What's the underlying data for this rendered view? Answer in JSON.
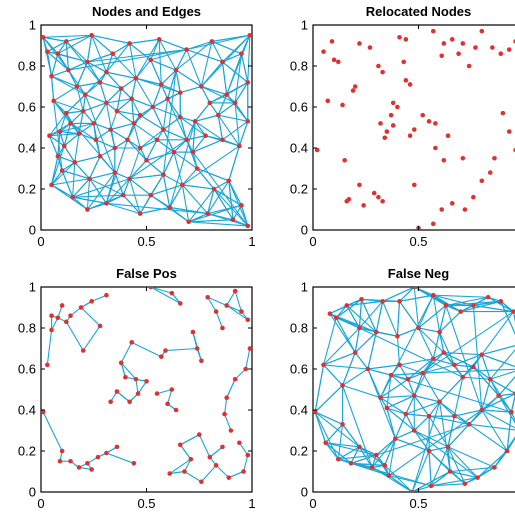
{
  "figure": {
    "panel_count": 4
  },
  "chart_data": [
    {
      "type": "scatter",
      "title": "Nodes and Edges",
      "xlabel": "",
      "ylabel": "",
      "xlim": [
        0,
        1
      ],
      "ylim": [
        0,
        1
      ],
      "xticks": [
        "0",
        "0.5",
        "1"
      ],
      "yticks": [
        "0",
        "0.2",
        "0.4",
        "0.6",
        "0.8",
        "1"
      ],
      "grid": false,
      "node_color": "#e03030",
      "edge_color": "#1aa7d8",
      "edge_density": "dense",
      "points": [
        [
          0.03,
          0.87
        ],
        [
          0.08,
          0.86
        ],
        [
          0.12,
          0.92
        ],
        [
          0.05,
          0.75
        ],
        [
          0.13,
          0.78
        ],
        [
          0.22,
          0.82
        ],
        [
          0.24,
          0.95
        ],
        [
          0.31,
          0.77
        ],
        [
          0.34,
          0.86
        ],
        [
          0.42,
          0.91
        ],
        [
          0.52,
          0.83
        ],
        [
          0.56,
          0.93
        ],
        [
          0.64,
          0.78
        ],
        [
          0.69,
          0.88
        ],
        [
          0.81,
          0.92
        ],
        [
          0.86,
          0.82
        ],
        [
          0.95,
          0.86
        ],
        [
          0.98,
          0.72
        ],
        [
          0.88,
          0.66
        ],
        [
          0.76,
          0.7
        ],
        [
          0.6,
          0.64
        ],
        [
          0.53,
          0.6
        ],
        [
          0.47,
          0.56
        ],
        [
          0.43,
          0.64
        ],
        [
          0.38,
          0.69
        ],
        [
          0.31,
          0.62
        ],
        [
          0.21,
          0.66
        ],
        [
          0.12,
          0.57
        ],
        [
          0.06,
          0.63
        ],
        [
          0.04,
          0.46
        ],
        [
          0.11,
          0.41
        ],
        [
          0.18,
          0.47
        ],
        [
          0.26,
          0.44
        ],
        [
          0.33,
          0.49
        ],
        [
          0.41,
          0.44
        ],
        [
          0.47,
          0.4
        ],
        [
          0.58,
          0.49
        ],
        [
          0.66,
          0.55
        ],
        [
          0.73,
          0.53
        ],
        [
          0.78,
          0.46
        ],
        [
          0.86,
          0.44
        ],
        [
          0.94,
          0.41
        ],
        [
          0.98,
          0.53
        ],
        [
          0.1,
          0.29
        ],
        [
          0.16,
          0.33
        ],
        [
          0.23,
          0.25
        ],
        [
          0.28,
          0.36
        ],
        [
          0.35,
          0.28
        ],
        [
          0.42,
          0.25
        ],
        [
          0.39,
          0.17
        ],
        [
          0.31,
          0.13
        ],
        [
          0.22,
          0.1
        ],
        [
          0.15,
          0.16
        ],
        [
          0.05,
          0.22
        ],
        [
          0.47,
          0.08
        ],
        [
          0.52,
          0.17
        ],
        [
          0.61,
          0.11
        ],
        [
          0.67,
          0.22
        ],
        [
          0.74,
          0.3
        ],
        [
          0.82,
          0.2
        ],
        [
          0.89,
          0.24
        ],
        [
          0.95,
          0.12
        ],
        [
          0.98,
          0.02
        ],
        [
          0.91,
          0.05
        ],
        [
          0.79,
          0.08
        ],
        [
          0.7,
          0.04
        ],
        [
          0.58,
          0.27
        ],
        [
          0.5,
          0.34
        ],
        [
          0.63,
          0.38
        ],
        [
          0.72,
          0.38
        ],
        [
          0.36,
          0.58
        ],
        [
          0.28,
          0.72
        ],
        [
          0.17,
          0.7
        ],
        [
          0.09,
          0.48
        ],
        [
          0.45,
          0.74
        ],
        [
          0.57,
          0.71
        ],
        [
          0.66,
          0.67
        ],
        [
          0.84,
          0.56
        ],
        [
          0.92,
          0.62
        ],
        [
          0.99,
          0.95
        ],
        [
          0.01,
          0.94
        ],
        [
          0.2,
          0.58
        ],
        [
          0.44,
          0.52
        ],
        [
          0.55,
          0.44
        ],
        [
          0.69,
          0.44
        ],
        [
          0.8,
          0.62
        ],
        [
          0.35,
          0.4
        ],
        [
          0.25,
          0.52
        ],
        [
          0.14,
          0.52
        ],
        [
          0.08,
          0.36
        ]
      ]
    },
    {
      "type": "scatter",
      "title": "Relocated Nodes",
      "xlabel": "",
      "ylabel": "",
      "xlim": [
        0,
        1
      ],
      "ylim": [
        0,
        1
      ],
      "xticks": [
        "0",
        "0.5"
      ],
      "yticks": [
        "0",
        "0.2",
        "0.4",
        "0.6",
        "0.8",
        "1"
      ],
      "grid": false,
      "node_color": "#e03030",
      "points": [
        [
          0.02,
          0.39
        ],
        [
          0.05,
          0.87
        ],
        [
          0.09,
          0.92
        ],
        [
          0.1,
          0.83
        ],
        [
          0.12,
          0.82
        ],
        [
          0.07,
          0.63
        ],
        [
          0.14,
          0.61
        ],
        [
          0.15,
          0.34
        ],
        [
          0.17,
          0.15
        ],
        [
          0.16,
          0.14
        ],
        [
          0.22,
          0.22
        ],
        [
          0.24,
          0.12
        ],
        [
          0.22,
          0.91
        ],
        [
          0.27,
          0.89
        ],
        [
          0.31,
          0.8
        ],
        [
          0.33,
          0.77
        ],
        [
          0.29,
          0.18
        ],
        [
          0.31,
          0.16
        ],
        [
          0.33,
          0.14
        ],
        [
          0.34,
          0.45
        ],
        [
          0.35,
          0.48
        ],
        [
          0.37,
          0.56
        ],
        [
          0.38,
          0.62
        ],
        [
          0.38,
          0.51
        ],
        [
          0.32,
          0.52
        ],
        [
          0.4,
          0.6
        ],
        [
          0.41,
          0.94
        ],
        [
          0.43,
          0.82
        ],
        [
          0.44,
          0.93
        ],
        [
          0.48,
          0.49
        ],
        [
          0.46,
          0.46
        ],
        [
          0.52,
          0.56
        ],
        [
          0.55,
          0.53
        ],
        [
          0.58,
          0.52
        ],
        [
          0.57,
          0.97
        ],
        [
          0.61,
          0.85
        ],
        [
          0.62,
          0.91
        ],
        [
          0.66,
          0.93
        ],
        [
          0.69,
          0.86
        ],
        [
          0.71,
          0.91
        ],
        [
          0.74,
          0.8
        ],
        [
          0.77,
          0.89
        ],
        [
          0.8,
          0.97
        ],
        [
          0.85,
          0.89
        ],
        [
          0.89,
          0.86
        ],
        [
          0.93,
          0.88
        ],
        [
          0.96,
          0.92
        ],
        [
          0.98,
          0.72
        ],
        [
          0.99,
          0.7
        ],
        [
          0.9,
          0.57
        ],
        [
          0.93,
          0.48
        ],
        [
          0.96,
          0.39
        ],
        [
          0.86,
          0.35
        ],
        [
          0.84,
          0.28
        ],
        [
          0.8,
          0.24
        ],
        [
          0.76,
          0.16
        ],
        [
          0.72,
          0.1
        ],
        [
          0.66,
          0.13
        ],
        [
          0.61,
          0.1
        ],
        [
          0.57,
          0.03
        ],
        [
          0.5,
          0.01
        ],
        [
          0.48,
          0.22
        ],
        [
          0.62,
          0.34
        ],
        [
          0.71,
          0.35
        ],
        [
          0.64,
          0.46
        ],
        [
          0.58,
          0.4
        ],
        [
          0.2,
          0.7
        ],
        [
          0.19,
          0.68
        ],
        [
          0.44,
          0.73
        ],
        [
          0.46,
          0.71
        ]
      ]
    },
    {
      "type": "scatter",
      "title": "False Pos",
      "xlabel": "",
      "ylabel": "",
      "xlim": [
        0,
        1
      ],
      "ylim": [
        0,
        1
      ],
      "xticks": [
        "0",
        "0.5",
        "1"
      ],
      "yticks": [
        "0",
        "0.2",
        "0.4",
        "0.6",
        "0.8",
        "1"
      ],
      "grid": false,
      "node_color": "#e03030",
      "edge_color": "#1aa7d8",
      "edge_density": "sparse",
      "points": [
        [
          0.01,
          0.39
        ],
        [
          0.03,
          0.62
        ],
        [
          0.05,
          0.79
        ],
        [
          0.08,
          0.85
        ],
        [
          0.1,
          0.91
        ],
        [
          0.12,
          0.83
        ],
        [
          0.14,
          0.86
        ],
        [
          0.19,
          0.9
        ],
        [
          0.24,
          0.93
        ],
        [
          0.31,
          0.96
        ],
        [
          0.28,
          0.81
        ],
        [
          0.38,
          0.63
        ],
        [
          0.4,
          0.56
        ],
        [
          0.45,
          0.55
        ],
        [
          0.36,
          0.49
        ],
        [
          0.33,
          0.44
        ],
        [
          0.42,
          0.44
        ],
        [
          0.46,
          0.48
        ],
        [
          0.5,
          0.54
        ],
        [
          0.57,
          0.66
        ],
        [
          0.59,
          0.69
        ],
        [
          0.6,
          0.43
        ],
        [
          0.55,
          0.48
        ],
        [
          0.62,
          0.5
        ],
        [
          0.64,
          0.4
        ],
        [
          0.52,
          1.0
        ],
        [
          0.62,
          0.97
        ],
        [
          0.66,
          0.92
        ],
        [
          0.72,
          0.78
        ],
        [
          0.74,
          0.7
        ],
        [
          0.76,
          0.64
        ],
        [
          0.79,
          0.95
        ],
        [
          0.83,
          0.88
        ],
        [
          0.86,
          0.8
        ],
        [
          0.88,
          0.91
        ],
        [
          0.92,
          0.98
        ],
        [
          0.95,
          0.88
        ],
        [
          0.98,
          0.84
        ],
        [
          0.99,
          0.7
        ],
        [
          0.97,
          0.6
        ],
        [
          0.92,
          0.55
        ],
        [
          0.88,
          0.46
        ],
        [
          0.87,
          0.38
        ],
        [
          0.9,
          0.3
        ],
        [
          0.94,
          0.24
        ],
        [
          0.98,
          0.18
        ],
        [
          0.96,
          0.1
        ],
        [
          0.89,
          0.07
        ],
        [
          0.83,
          0.13
        ],
        [
          0.8,
          0.17
        ],
        [
          0.75,
          0.28
        ],
        [
          0.71,
          0.16
        ],
        [
          0.68,
          0.1
        ],
        [
          0.76,
          0.05
        ],
        [
          0.86,
          0.22
        ],
        [
          0.1,
          0.2
        ],
        [
          0.14,
          0.15
        ],
        [
          0.18,
          0.12
        ],
        [
          0.22,
          0.14
        ],
        [
          0.27,
          0.17
        ],
        [
          0.31,
          0.19
        ],
        [
          0.24,
          0.11
        ],
        [
          0.09,
          0.15
        ],
        [
          0.36,
          0.22
        ],
        [
          0.44,
          0.14
        ],
        [
          0.2,
          0.69
        ],
        [
          0.05,
          0.86
        ],
        [
          0.43,
          0.73
        ],
        [
          0.61,
          0.09
        ],
        [
          0.66,
          0.23
        ]
      ]
    },
    {
      "type": "scatter",
      "title": "False Neg",
      "xlabel": "",
      "ylabel": "",
      "xlim": [
        0,
        1
      ],
      "ylim": [
        0,
        1
      ],
      "xticks": [
        "0",
        "0.5"
      ],
      "yticks": [
        "0",
        "0.2",
        "0.4",
        "0.6",
        "0.8",
        "1"
      ],
      "grid": false,
      "node_color": "#e03030",
      "edge_color": "#1aa7d8",
      "edge_density": "dense",
      "points": [
        [
          0.01,
          0.39
        ],
        [
          0.05,
          0.62
        ],
        [
          0.08,
          0.87
        ],
        [
          0.11,
          0.85
        ],
        [
          0.16,
          0.91
        ],
        [
          0.23,
          0.94
        ],
        [
          0.33,
          0.93
        ],
        [
          0.41,
          0.93
        ],
        [
          0.48,
          1.0
        ],
        [
          0.57,
          0.96
        ],
        [
          0.63,
          0.91
        ],
        [
          0.7,
          0.88
        ],
        [
          0.76,
          0.91
        ],
        [
          0.83,
          0.95
        ],
        [
          0.89,
          0.93
        ],
        [
          0.95,
          0.88
        ],
        [
          0.98,
          0.72
        ],
        [
          0.99,
          0.6
        ],
        [
          0.96,
          0.48
        ],
        [
          0.94,
          0.39
        ],
        [
          0.98,
          0.3
        ],
        [
          0.92,
          0.2
        ],
        [
          0.86,
          0.12
        ],
        [
          0.78,
          0.07
        ],
        [
          0.72,
          0.04
        ],
        [
          0.65,
          0.1
        ],
        [
          0.56,
          0.03
        ],
        [
          0.47,
          0.0
        ],
        [
          0.36,
          0.08
        ],
        [
          0.28,
          0.12
        ],
        [
          0.18,
          0.14
        ],
        [
          0.12,
          0.16
        ],
        [
          0.06,
          0.24
        ],
        [
          0.14,
          0.33
        ],
        [
          0.22,
          0.22
        ],
        [
          0.3,
          0.18
        ],
        [
          0.34,
          0.13
        ],
        [
          0.39,
          0.26
        ],
        [
          0.35,
          0.41
        ],
        [
          0.32,
          0.46
        ],
        [
          0.37,
          0.57
        ],
        [
          0.41,
          0.62
        ],
        [
          0.45,
          0.55
        ],
        [
          0.48,
          0.47
        ],
        [
          0.52,
          0.58
        ],
        [
          0.57,
          0.65
        ],
        [
          0.62,
          0.68
        ],
        [
          0.67,
          0.62
        ],
        [
          0.71,
          0.56
        ],
        [
          0.76,
          0.61
        ],
        [
          0.8,
          0.67
        ],
        [
          0.84,
          0.55
        ],
        [
          0.88,
          0.47
        ],
        [
          0.8,
          0.4
        ],
        [
          0.74,
          0.33
        ],
        [
          0.67,
          0.37
        ],
        [
          0.6,
          0.44
        ],
        [
          0.55,
          0.37
        ],
        [
          0.48,
          0.3
        ],
        [
          0.44,
          0.38
        ],
        [
          0.26,
          0.6
        ],
        [
          0.2,
          0.68
        ],
        [
          0.14,
          0.52
        ],
        [
          0.22,
          0.8
        ],
        [
          0.3,
          0.78
        ],
        [
          0.4,
          0.76
        ],
        [
          0.5,
          0.8
        ],
        [
          0.6,
          0.78
        ],
        [
          0.55,
          0.2
        ],
        [
          0.64,
          0.22
        ]
      ]
    }
  ]
}
